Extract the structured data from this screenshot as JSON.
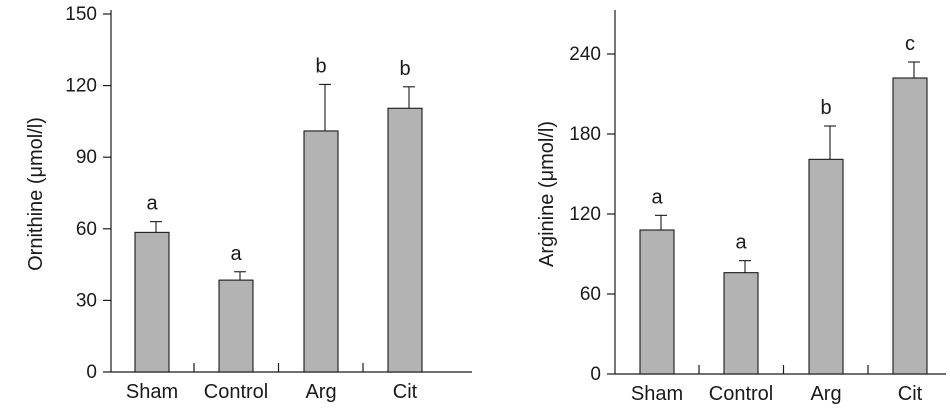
{
  "chart_data": [
    {
      "type": "bar",
      "categories": [
        "Sham",
        "Control",
        "Arg",
        "Cit"
      ],
      "values": [
        58.5,
        38.5,
        101,
        110.5
      ],
      "error": [
        4.5,
        3.5,
        19.5,
        9
      ],
      "significance": [
        "a",
        "a",
        "b",
        "b"
      ],
      "ylabel": "Ornithine (μmol/l)",
      "ylim": [
        0,
        150
      ],
      "yticks": [
        0,
        30,
        60,
        90,
        120,
        150
      ],
      "grid": false,
      "bar_color": "#b3b3b3"
    },
    {
      "type": "bar",
      "categories": [
        "Sham",
        "Control",
        "Arg",
        "Cit"
      ],
      "values": [
        108,
        76,
        161,
        222
      ],
      "error": [
        11,
        9,
        25,
        12
      ],
      "significance": [
        "a",
        "a",
        "b",
        "c"
      ],
      "ylabel": "Arginine (μmol/l)",
      "ylim": [
        0,
        270
      ],
      "yticks": [
        0,
        60,
        120,
        180,
        240
      ],
      "grid": false,
      "bar_color": "#b3b3b3"
    }
  ]
}
